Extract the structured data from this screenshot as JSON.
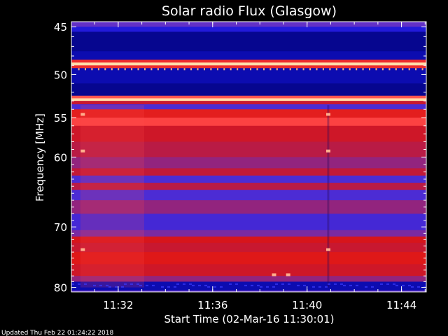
{
  "chart_data": {
    "type": "heatmap",
    "title": "Solar radio Flux (Glasgow)",
    "xlabel": "Start Time (02-Mar-16 11:30:01)",
    "ylabel": "Frequency [MHz]",
    "x_range": [
      "11:30:01",
      "11:45"
    ],
    "y_range_mhz": [
      45,
      80
    ],
    "y_scale": "log",
    "y_direction": "top-to-bottom increasing",
    "x_ticks": [
      "11:32",
      "11:36",
      "11:40",
      "11:44"
    ],
    "y_ticks": [
      "45",
      "50",
      "55",
      "60",
      "70",
      "80"
    ],
    "colormap": [
      "#00006e",
      "#1414dc",
      "#5a32d2",
      "#aa1e5a",
      "#dc1414",
      "#ff4646",
      "#ffdcaa"
    ],
    "bands": [
      {
        "f0": 45.0,
        "f1": 45.5,
        "level": 0.2
      },
      {
        "f0": 45.5,
        "f1": 47.5,
        "level": 0.05
      },
      {
        "f0": 47.5,
        "f1": 48.4,
        "level": 0.1
      },
      {
        "f0": 48.4,
        "f1": 48.7,
        "level": 0.75
      },
      {
        "f0": 48.7,
        "f1": 49.0,
        "level": 1.0
      },
      {
        "f0": 49.0,
        "f1": 49.3,
        "level": 0.75
      },
      {
        "f0": 49.3,
        "f1": 51.0,
        "level": 0.1
      },
      {
        "f0": 51.0,
        "f1": 52.4,
        "level": 0.05
      },
      {
        "f0": 52.4,
        "f1": 52.7,
        "level": 0.85
      },
      {
        "f0": 52.7,
        "f1": 53.0,
        "level": 1.0
      },
      {
        "f0": 53.0,
        "f1": 53.4,
        "level": 0.6
      },
      {
        "f0": 53.4,
        "f1": 54.0,
        "level": 0.3
      },
      {
        "f0": 54.0,
        "f1": 55.0,
        "level": 0.7
      },
      {
        "f0": 55.0,
        "f1": 56.0,
        "level": 0.82
      },
      {
        "f0": 56.0,
        "f1": 58.0,
        "level": 0.62
      },
      {
        "f0": 58.0,
        "f1": 60.0,
        "level": 0.55
      },
      {
        "f0": 60.0,
        "f1": 61.5,
        "level": 0.45
      },
      {
        "f0": 61.5,
        "f1": 62.5,
        "level": 0.58
      },
      {
        "f0": 62.5,
        "f1": 63.5,
        "level": 0.3
      },
      {
        "f0": 63.5,
        "f1": 64.5,
        "level": 0.55
      },
      {
        "f0": 64.5,
        "f1": 66.0,
        "level": 0.3
      },
      {
        "f0": 66.0,
        "f1": 68.0,
        "level": 0.45
      },
      {
        "f0": 68.0,
        "f1": 70.5,
        "level": 0.28
      },
      {
        "f0": 70.5,
        "f1": 71.5,
        "level": 0.4
      },
      {
        "f0": 71.5,
        "f1": 72.5,
        "level": 0.65
      },
      {
        "f0": 72.5,
        "f1": 74.0,
        "level": 0.6
      },
      {
        "f0": 74.0,
        "f1": 76.0,
        "level": 0.68
      },
      {
        "f0": 76.0,
        "f1": 78.0,
        "level": 0.62
      },
      {
        "f0": 78.0,
        "f1": 79.0,
        "level": 0.45
      },
      {
        "f0": 79.0,
        "f1": 80.5,
        "level": 0.1
      }
    ]
  },
  "footer": {
    "updated": "Updated Thu Feb 22 01:24:22 2018"
  }
}
